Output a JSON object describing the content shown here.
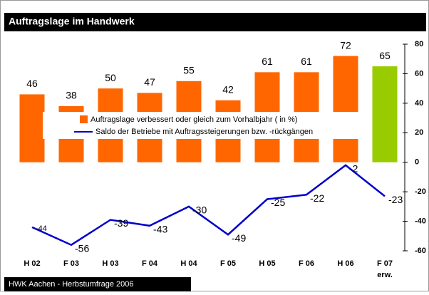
{
  "chart_data": {
    "type": "bar_line",
    "title": "Auftragslage im Handwerk",
    "source": "HWK Aachen - Herbstumfrage 2006",
    "categories": [
      "H 02",
      "F 03",
      "H 03",
      "F 04",
      "H 04",
      "F 05",
      "H 05",
      "F 06",
      "H 06",
      "F 07 erw."
    ],
    "series": [
      {
        "name": "Auftragslage verbessert oder gleich zum Vorhalbjahr ( in %)",
        "type": "bar",
        "color": "#ff6600",
        "colors": [
          "#ff6600",
          "#ff6600",
          "#ff6600",
          "#ff6600",
          "#ff6600",
          "#ff6600",
          "#ff6600",
          "#ff6600",
          "#ff6600",
          "#99cc00"
        ],
        "values": [
          46,
          38,
          50,
          47,
          55,
          42,
          61,
          61,
          72,
          65
        ]
      },
      {
        "name": "Saldo der Betriebe mit Auftragssteigerungen bzw. -rückgängen",
        "type": "line",
        "color": "#0000cc",
        "values": [
          -44,
          -56,
          -39,
          -43,
          -30,
          -49,
          -25,
          -22,
          -2,
          -23
        ]
      }
    ],
    "ylim": [
      -60,
      80
    ],
    "yticks": [
      -60,
      -40,
      -20,
      0,
      20,
      40,
      60,
      80
    ]
  }
}
